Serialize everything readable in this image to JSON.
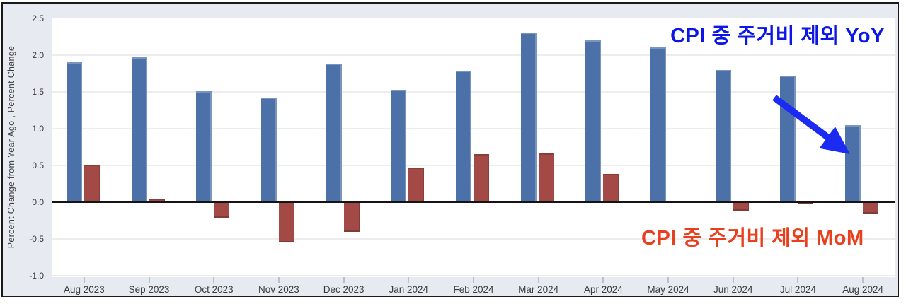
{
  "annotations": {
    "yoy_label": "CPI 중 주거비 제외 YoY",
    "mom_label": "CPI 중 주거비 제외 MoM"
  },
  "colors": {
    "margin_bg": "#e7ebf1",
    "plot_bg": "#ffffff",
    "frame_border": "#1a1a1a",
    "gridline": "#ededed",
    "zero_line": "#141414",
    "yoy_bar": "#4c71a8",
    "mom_bar": "#a44a46",
    "annotation_yoy": "#0c17e6",
    "annotation_mom": "#e8401f",
    "arrow": "#1c2bf2"
  },
  "chart_data": {
    "type": "bar",
    "title": "",
    "ylabel": "Percent Change from Year Ago , Percent Change",
    "xlabel": "",
    "categories": [
      "Aug 2023",
      "Sep 2023",
      "Oct 2023",
      "Nov 2023",
      "Dec 2023",
      "Jan 2024",
      "Feb 2024",
      "Mar 2024",
      "Apr 2024",
      "May 2024",
      "Jun 2024",
      "Jul 2024",
      "Aug 2024"
    ],
    "series": [
      {
        "name": "CPI 중 주거비 제외 YoY",
        "color": "#4c71a8",
        "values": [
          1.9,
          1.97,
          1.51,
          1.42,
          1.88,
          1.53,
          1.79,
          2.31,
          2.2,
          2.11,
          1.8,
          1.72,
          1.05
        ]
      },
      {
        "name": "CPI 중 주거비 제외 MoM",
        "color": "#a44a46",
        "values": [
          0.51,
          0.05,
          -0.21,
          -0.55,
          -0.4,
          0.47,
          0.65,
          0.66,
          0.38,
          0.0,
          -0.12,
          -0.03,
          -0.15
        ]
      }
    ],
    "y_ticks": [
      "2.5",
      "2.0",
      "1.5",
      "1.0",
      "0.5",
      "0.0",
      "-0.5",
      "-1.0"
    ],
    "ylim": [
      -1.02,
      2.5
    ],
    "grid": true,
    "legend_position": "none"
  }
}
